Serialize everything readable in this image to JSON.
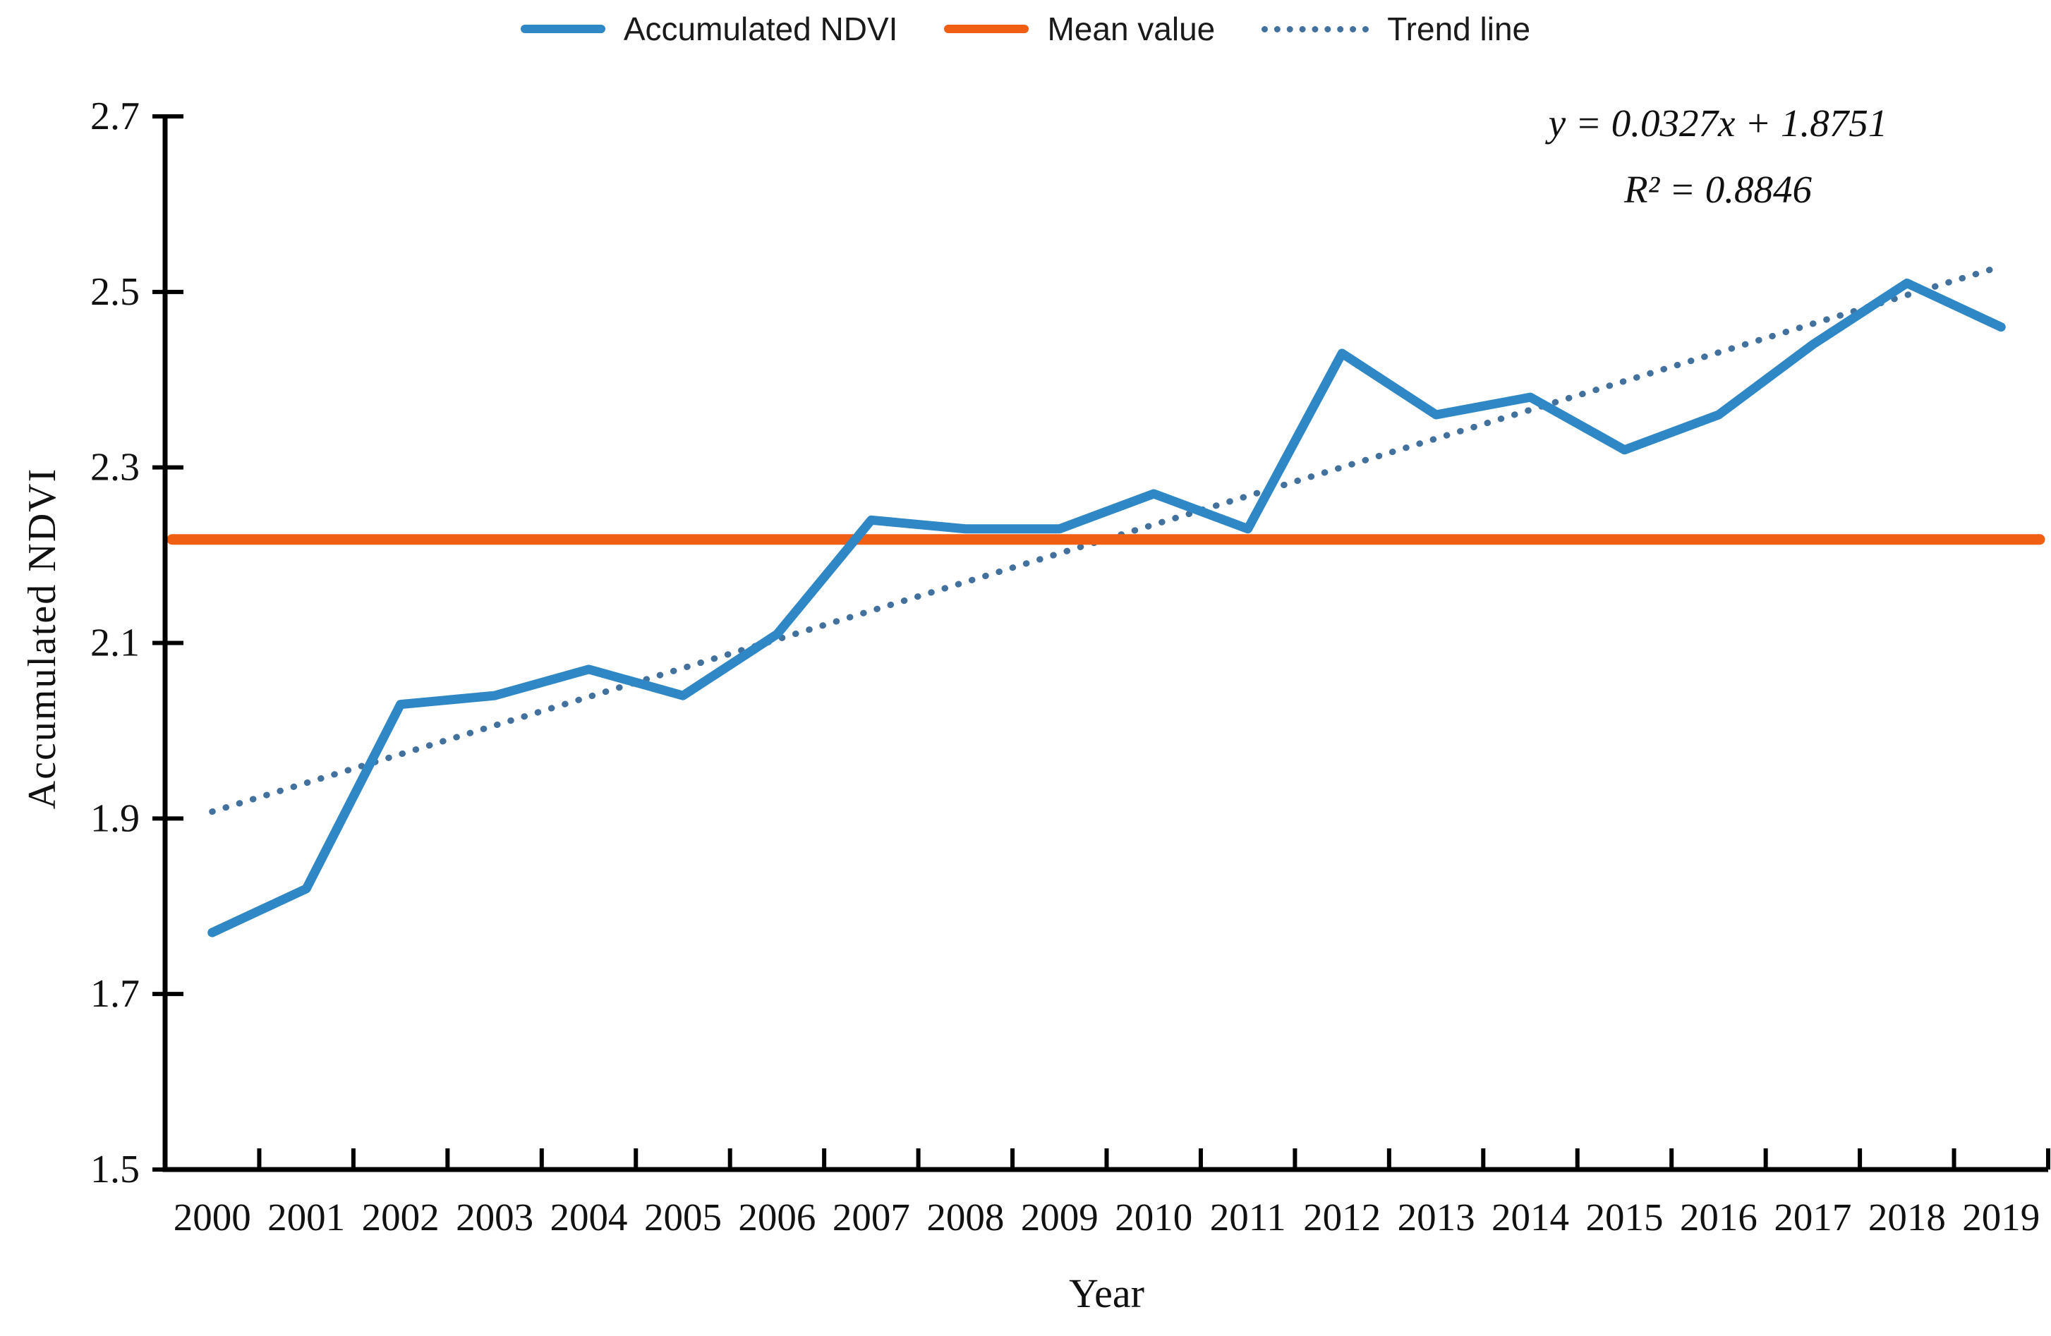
{
  "legend": {
    "items": [
      {
        "label": "Accumulated NDVI",
        "swatch": "solid-line",
        "color": "#2f88c5"
      },
      {
        "label": "Mean value",
        "swatch": "solid-line",
        "color": "#f05e14"
      },
      {
        "label": "Trend line",
        "swatch": "dotted-line",
        "color": "#41719c"
      }
    ]
  },
  "annotation": {
    "equation": "y = 0.0327x + 1.8751",
    "r_squared": "R² = 0.8846"
  },
  "chart_data": {
    "type": "line",
    "title": "",
    "xlabel": "Year",
    "ylabel": "Accumulated  NDVI",
    "categories": [
      "2000",
      "2001",
      "2002",
      "2003",
      "2004",
      "2005",
      "2006",
      "2007",
      "2008",
      "2009",
      "2010",
      "2011",
      "2012",
      "2013",
      "2014",
      "2015",
      "2016",
      "2017",
      "2018",
      "2019"
    ],
    "series": [
      {
        "name": "Accumulated NDVI",
        "type": "line",
        "color": "#2f88c5",
        "values": [
          1.77,
          1.82,
          2.03,
          2.04,
          2.07,
          2.04,
          2.11,
          2.24,
          2.23,
          2.23,
          2.27,
          2.23,
          2.43,
          2.36,
          2.38,
          2.32,
          2.36,
          2.44,
          2.51,
          2.46
        ]
      },
      {
        "name": "Mean value",
        "type": "hline",
        "color": "#f05e14",
        "value": 2.218
      },
      {
        "name": "Trend line",
        "type": "trend",
        "color": "#41719c",
        "slope": 0.0327,
        "intercept": 1.8751
      }
    ],
    "ylim": [
      1.5,
      2.7
    ],
    "yticks": [
      1.5,
      1.7,
      1.9,
      2.1,
      2.3,
      2.5,
      2.7
    ],
    "ytick_decimals": 1,
    "grid": false,
    "legend_position": "top",
    "axis_color": "#000000"
  }
}
